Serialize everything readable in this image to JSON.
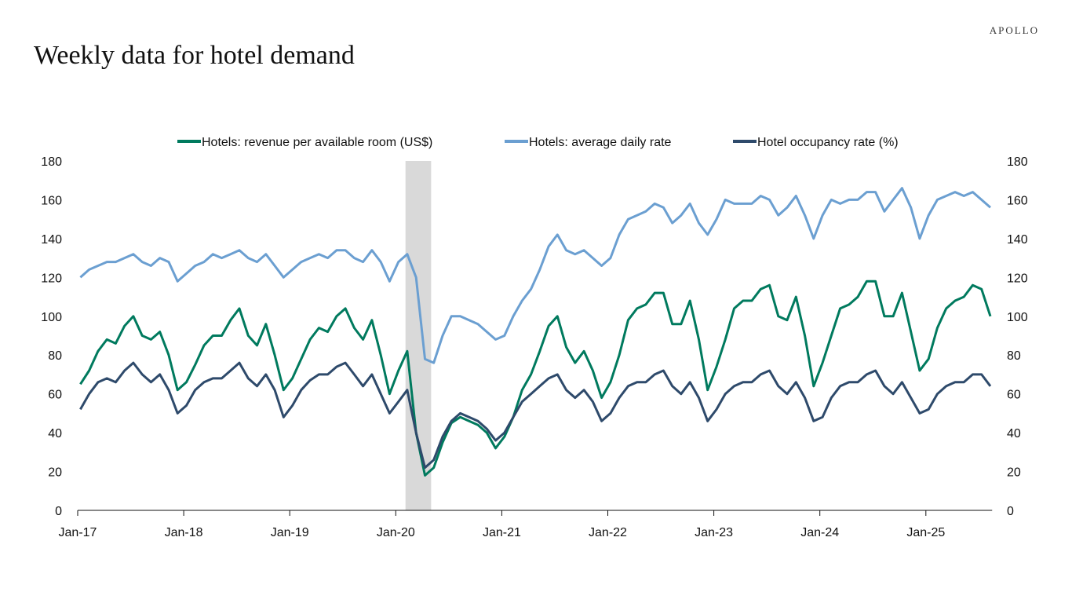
{
  "header": {
    "title": "Weekly data for hotel demand",
    "logo": "APOLLO"
  },
  "chart_data": {
    "type": "line",
    "title": "Weekly data for hotel demand",
    "legend_position": "top",
    "grid": false,
    "x_start": "2017-01",
    "x_frequency": "monthly (approximation of weekly data)",
    "x_ticks": [
      "Jan-17",
      "Jan-18",
      "Jan-19",
      "Jan-20",
      "Jan-21",
      "Jan-22",
      "Jan-23",
      "Jan-24",
      "Jan-25"
    ],
    "y_ticks": [
      0,
      20,
      40,
      60,
      80,
      100,
      120,
      140,
      160,
      180
    ],
    "ylim": [
      0,
      180
    ],
    "y2lim": [
      0,
      180
    ],
    "shaded_period": {
      "start": "2020-02",
      "end": "2020-04",
      "color": "#d9d9d9"
    },
    "series": [
      {
        "name": "Hotels: revenue per available room (US$)",
        "color": "#007a5e",
        "axis": "left",
        "values": [
          65,
          72,
          82,
          88,
          86,
          95,
          100,
          90,
          88,
          92,
          80,
          62,
          66,
          75,
          85,
          90,
          90,
          98,
          104,
          90,
          85,
          96,
          80,
          62,
          68,
          78,
          88,
          94,
          92,
          100,
          104,
          94,
          88,
          98,
          80,
          60,
          72,
          82,
          40,
          18,
          22,
          35,
          45,
          48,
          46,
          44,
          40,
          32,
          38,
          48,
          62,
          70,
          82,
          95,
          100,
          84,
          76,
          82,
          72,
          58,
          66,
          80,
          98,
          104,
          106,
          112,
          112,
          96,
          96,
          108,
          88,
          62,
          74,
          88,
          104,
          108,
          108,
          114,
          116,
          100,
          98,
          110,
          90,
          64,
          76,
          90,
          104,
          106,
          110,
          118,
          118,
          100,
          100,
          112,
          92,
          72,
          78,
          94,
          104,
          108,
          110,
          116,
          114,
          100
        ]
      },
      {
        "name": "Hotels: average daily rate",
        "color": "#6b9fd1",
        "axis": "left",
        "values": [
          120,
          124,
          126,
          128,
          128,
          130,
          132,
          128,
          126,
          130,
          128,
          118,
          122,
          126,
          128,
          132,
          130,
          132,
          134,
          130,
          128,
          132,
          126,
          120,
          124,
          128,
          130,
          132,
          130,
          134,
          134,
          130,
          128,
          134,
          128,
          118,
          128,
          132,
          120,
          78,
          76,
          90,
          100,
          100,
          98,
          96,
          92,
          88,
          90,
          100,
          108,
          114,
          124,
          136,
          142,
          134,
          132,
          134,
          130,
          126,
          130,
          142,
          150,
          152,
          154,
          158,
          156,
          148,
          152,
          158,
          148,
          142,
          150,
          160,
          158,
          158,
          158,
          162,
          160,
          152,
          156,
          162,
          152,
          140,
          152,
          160,
          158,
          160,
          160,
          164,
          164,
          154,
          160,
          166,
          156,
          140,
          152,
          160,
          162,
          164,
          162,
          164,
          160,
          156
        ]
      },
      {
        "name": "Hotel occupancy rate (%)",
        "color": "#2e4a6b",
        "axis": "right",
        "values": [
          52,
          60,
          66,
          68,
          66,
          72,
          76,
          70,
          66,
          70,
          62,
          50,
          54,
          62,
          66,
          68,
          68,
          72,
          76,
          68,
          64,
          70,
          62,
          48,
          54,
          62,
          67,
          70,
          70,
          74,
          76,
          70,
          64,
          70,
          60,
          50,
          56,
          62,
          40,
          22,
          26,
          38,
          46,
          50,
          48,
          46,
          42,
          36,
          40,
          48,
          56,
          60,
          64,
          68,
          70,
          62,
          58,
          62,
          56,
          46,
          50,
          58,
          64,
          66,
          66,
          70,
          72,
          64,
          60,
          66,
          58,
          46,
          52,
          60,
          64,
          66,
          66,
          70,
          72,
          64,
          60,
          66,
          58,
          46,
          48,
          58,
          64,
          66,
          66,
          70,
          72,
          64,
          60,
          66,
          58,
          50,
          52,
          60,
          64,
          66,
          66,
          70,
          70,
          64
        ]
      }
    ]
  }
}
